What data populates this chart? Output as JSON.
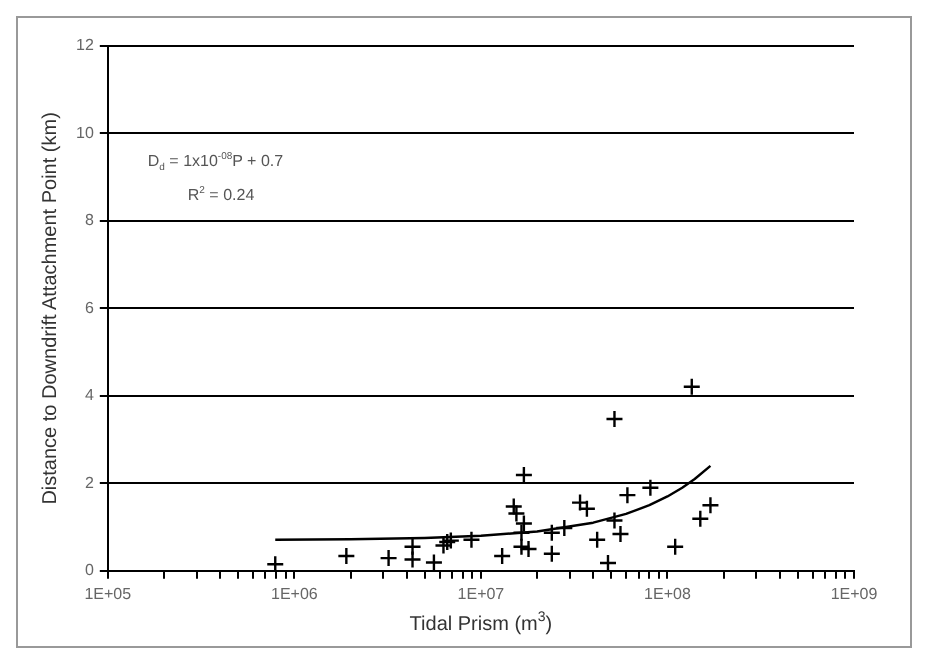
{
  "chart_data": {
    "type": "scatter",
    "xlabel": "Tidal Prism (m$^{3}$)",
    "ylabel": "Distance to Downdrift Attachment Point (km)",
    "annotations": [
      "D$_{d}$ = 1x10$^{-08}$P + 0.7",
      "R$^{2}$ = 0.24"
    ],
    "log": "x",
    "grid": "y",
    "legend": false,
    "marker": "cross",
    "xlim": [
      100000,
      1000000000
    ],
    "ylim": [
      0,
      12
    ],
    "yticks": [
      0,
      2,
      4,
      6,
      8,
      10,
      12
    ],
    "xticks": [
      {
        "value": 100000,
        "label": "1E+05"
      },
      {
        "value": 200000,
        "label": null
      },
      {
        "value": 300000,
        "label": null
      },
      {
        "value": 400000,
        "label": null
      },
      {
        "value": 500000,
        "label": null
      },
      {
        "value": 600000,
        "label": null
      },
      {
        "value": 700000,
        "label": null
      },
      {
        "value": 800000,
        "label": null
      },
      {
        "value": 900000,
        "label": null
      },
      {
        "value": 1000000,
        "label": "1E+06"
      },
      {
        "value": 2000000,
        "label": null
      },
      {
        "value": 3000000,
        "label": null
      },
      {
        "value": 4000000,
        "label": null
      },
      {
        "value": 5000000,
        "label": null
      },
      {
        "value": 6000000,
        "label": null
      },
      {
        "value": 7000000,
        "label": null
      },
      {
        "value": 8000000,
        "label": null
      },
      {
        "value": 9000000,
        "label": null
      },
      {
        "value": 10000000,
        "label": "1E+07"
      },
      {
        "value": 20000000,
        "label": null
      },
      {
        "value": 30000000,
        "label": null
      },
      {
        "value": 40000000,
        "label": null
      },
      {
        "value": 50000000,
        "label": null
      },
      {
        "value": 60000000,
        "label": null
      },
      {
        "value": 70000000,
        "label": null
      },
      {
        "value": 80000000,
        "label": null
      },
      {
        "value": 90000000,
        "label": null
      },
      {
        "value": 100000000,
        "label": "1E+08"
      },
      {
        "value": 200000000,
        "label": null
      },
      {
        "value": 300000000,
        "label": null
      },
      {
        "value": 400000000,
        "label": null
      },
      {
        "value": 500000000,
        "label": null
      },
      {
        "value": 600000000,
        "label": null
      },
      {
        "value": 700000000,
        "label": null
      },
      {
        "value": 800000000,
        "label": null
      },
      {
        "value": 900000000,
        "label": null
      },
      {
        "value": 1000000000,
        "label": "1E+09"
      }
    ],
    "series": [
      {
        "type": "scatter",
        "color": "#000000",
        "x": [
          790000,
          1900000,
          3200000,
          4300000,
          4300000,
          5600000,
          6300000,
          6600000,
          6900000,
          8900000,
          13000000,
          15000000,
          15500000,
          17000000,
          17000000,
          16500000,
          16500000,
          18000000,
          24000000,
          24000000,
          28000000,
          34000000,
          37000000,
          42000000,
          48000000,
          52000000,
          52000000,
          56000000,
          61000000,
          81000000,
          110000000,
          135000000,
          150000000,
          170000000
        ],
        "values": [
          0.15,
          0.34,
          0.29,
          0.55,
          0.26,
          0.19,
          0.58,
          0.66,
          0.69,
          0.71,
          0.34,
          1.47,
          1.31,
          2.19,
          1.08,
          0.87,
          0.55,
          0.5,
          0.39,
          0.87,
          0.98,
          1.56,
          1.42,
          0.71,
          0.18,
          3.47,
          1.15,
          0.84,
          1.73,
          1.9,
          0.55,
          4.21,
          1.19,
          1.5
        ]
      },
      {
        "type": "line",
        "color": "#000000",
        "marker": "none",
        "x": [
          790000,
          2000000,
          5000000,
          10000000,
          20000000,
          40000000,
          60000000,
          80000000,
          100000000,
          120000000,
          140000000,
          170000000
        ],
        "values": [
          0.71,
          0.72,
          0.75,
          0.8,
          0.9,
          1.1,
          1.3,
          1.5,
          1.7,
          1.9,
          2.1,
          2.4
        ]
      }
    ]
  }
}
